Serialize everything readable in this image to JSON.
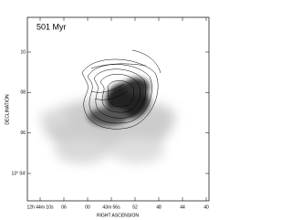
{
  "chart_data": {
    "type": "image",
    "title": "501 Myr",
    "xlabel": "RIGHT ASCENSION",
    "ylabel": "DECLINATION",
    "xticks": [
      "12h 44m 10s",
      "06",
      "00",
      "43m 56s",
      "52",
      "48",
      "44",
      "40"
    ],
    "yticks": [
      "10",
      "08",
      "06",
      "13° 04'"
    ]
  }
}
